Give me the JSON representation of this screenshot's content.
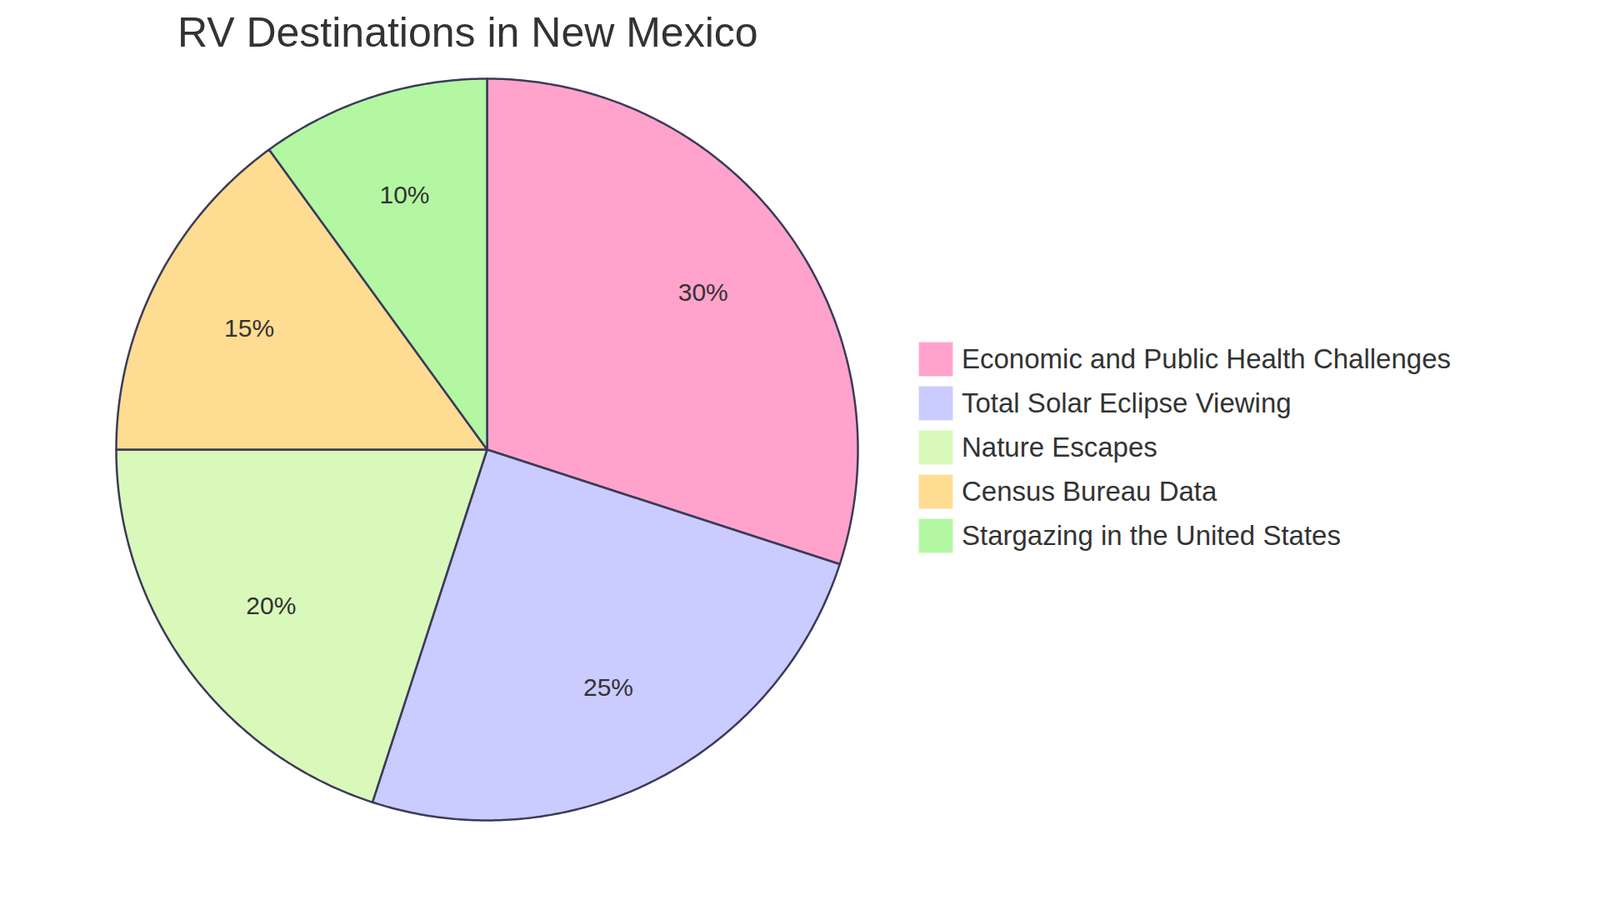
{
  "chart_data": {
    "type": "pie",
    "title": "RV Destinations in New Mexico",
    "categories": [
      "Economic and Public Health Challenges",
      "Total Solar Eclipse Viewing",
      "Nature Escapes",
      "Census Bureau Data",
      "Stargazing in the United States"
    ],
    "values": [
      30,
      25,
      20,
      15,
      10
    ],
    "value_labels": [
      "30%",
      "25%",
      "20%",
      "15%",
      "10%"
    ],
    "colors": [
      "#ffa3cc",
      "#cacbfe",
      "#d9f9bb",
      "#fedc92",
      "#b3f7a3"
    ],
    "data_labels": true,
    "legend": "right"
  }
}
